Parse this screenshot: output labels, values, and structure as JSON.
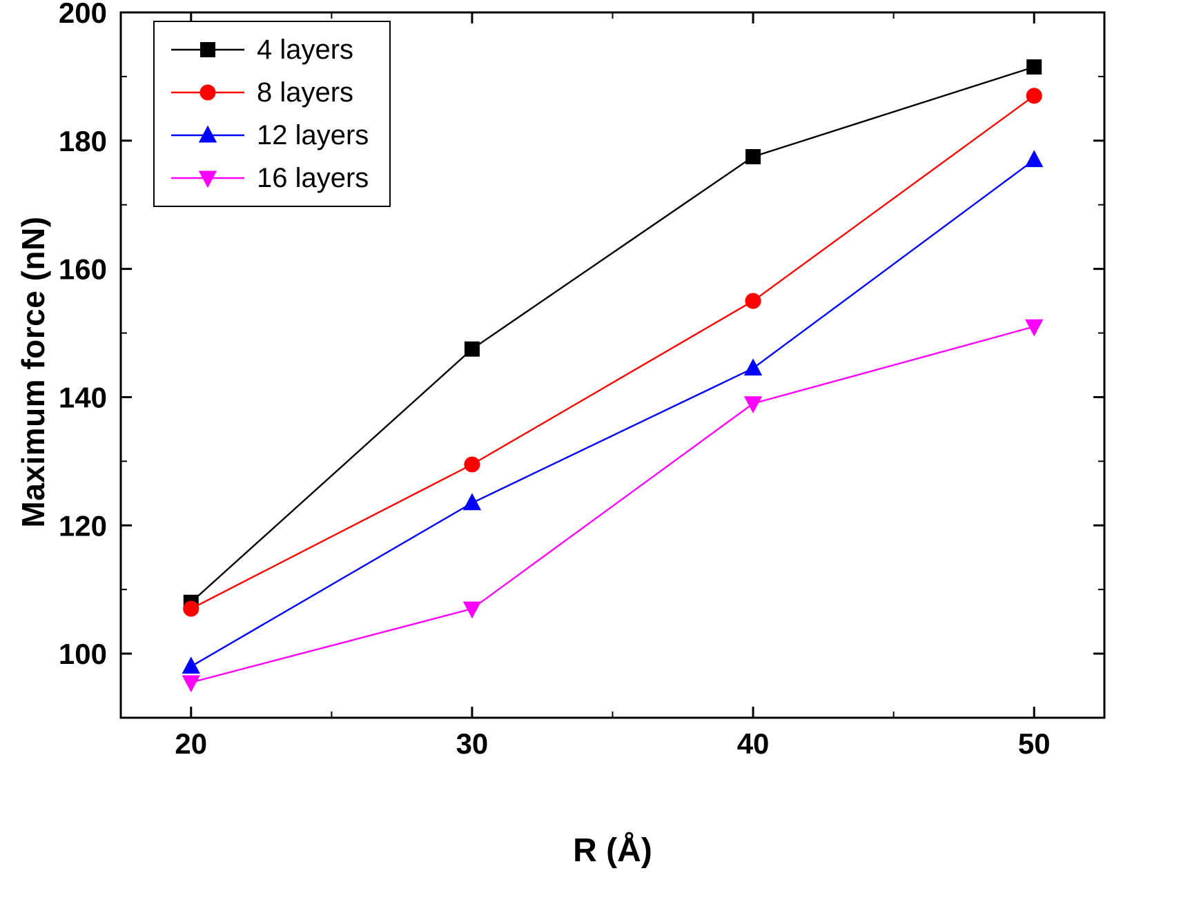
{
  "chart_data": {
    "type": "line",
    "x": [
      20,
      30,
      40,
      50
    ],
    "series": [
      {
        "name": "4 layers",
        "color": "#000000",
        "marker": "square",
        "values": [
          108.0,
          147.5,
          177.5,
          191.5
        ]
      },
      {
        "name": "8 layers",
        "color": "#ff0000",
        "marker": "circle",
        "values": [
          107.0,
          129.5,
          155.0,
          187.0
        ]
      },
      {
        "name": "12 layers",
        "color": "#0000ff",
        "marker": "triangle-up",
        "values": [
          98.0,
          123.5,
          144.5,
          177.0
        ]
      },
      {
        "name": "16 layers",
        "color": "#ff00ff",
        "marker": "triangle-down",
        "values": [
          95.5,
          107.0,
          139.0,
          151.0
        ]
      }
    ],
    "title": "",
    "xlabel": "R (Å)",
    "ylabel": "Maximum force (nN)",
    "xlim": [
      17.5,
      52.5
    ],
    "ylim": [
      90,
      200
    ],
    "x_ticks": [
      20,
      30,
      40,
      50
    ],
    "y_ticks": [
      100,
      120,
      140,
      160,
      180,
      200
    ],
    "x_minor_ticks": [
      25,
      35,
      45
    ],
    "y_minor_ticks": [
      110,
      130,
      150,
      170,
      190
    ],
    "grid": false,
    "legend_position": "top-left",
    "frame_color": "#000000",
    "background_color": "#ffffff"
  }
}
